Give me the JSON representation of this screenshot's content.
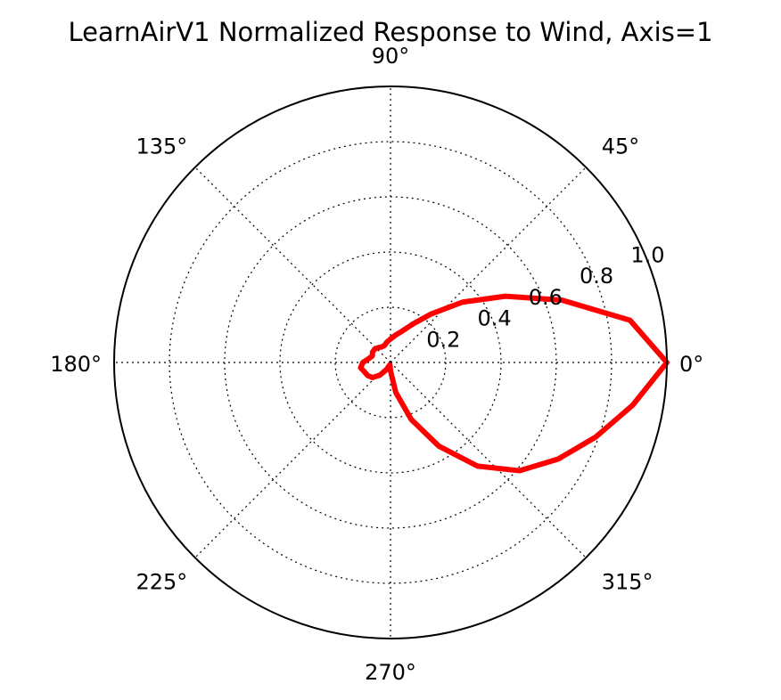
{
  "chart_data": {
    "type": "line",
    "projection": "polar",
    "title": "LearnAirV1 Normalized Response to Wind, Axis=1",
    "theta_unit": "degrees",
    "theta_ticks": [
      "0°",
      "45°",
      "90°",
      "135°",
      "180°",
      "225°",
      "270°",
      "315°"
    ],
    "r_ticks": [
      "0.2",
      "0.4",
      "0.6",
      "0.8",
      "1.0"
    ],
    "rlim": [
      0,
      1.0
    ],
    "grid": true,
    "series": [
      {
        "theta": [
          0,
          10,
          20,
          30,
          40,
          50,
          60,
          70,
          80,
          90,
          100,
          110,
          120,
          130,
          140,
          150,
          160,
          170,
          180,
          190,
          200,
          210,
          220,
          230,
          240,
          250,
          260,
          270,
          280,
          290,
          300,
          310,
          320,
          330,
          340,
          350,
          360
        ],
        "r": [
          1.0,
          0.88,
          0.66,
          0.48,
          0.34,
          0.23,
          0.16,
          0.12,
          0.1,
          0.085,
          0.075,
          0.065,
          0.065,
          0.07,
          0.075,
          0.075,
          0.07,
          0.08,
          0.1,
          0.11,
          0.1,
          0.095,
          0.085,
          0.06,
          0.03,
          0.01,
          0.01,
          0.03,
          0.11,
          0.22,
          0.35,
          0.49,
          0.61,
          0.7,
          0.79,
          0.89,
          1.0
        ],
        "color": "#ff0000"
      }
    ]
  }
}
